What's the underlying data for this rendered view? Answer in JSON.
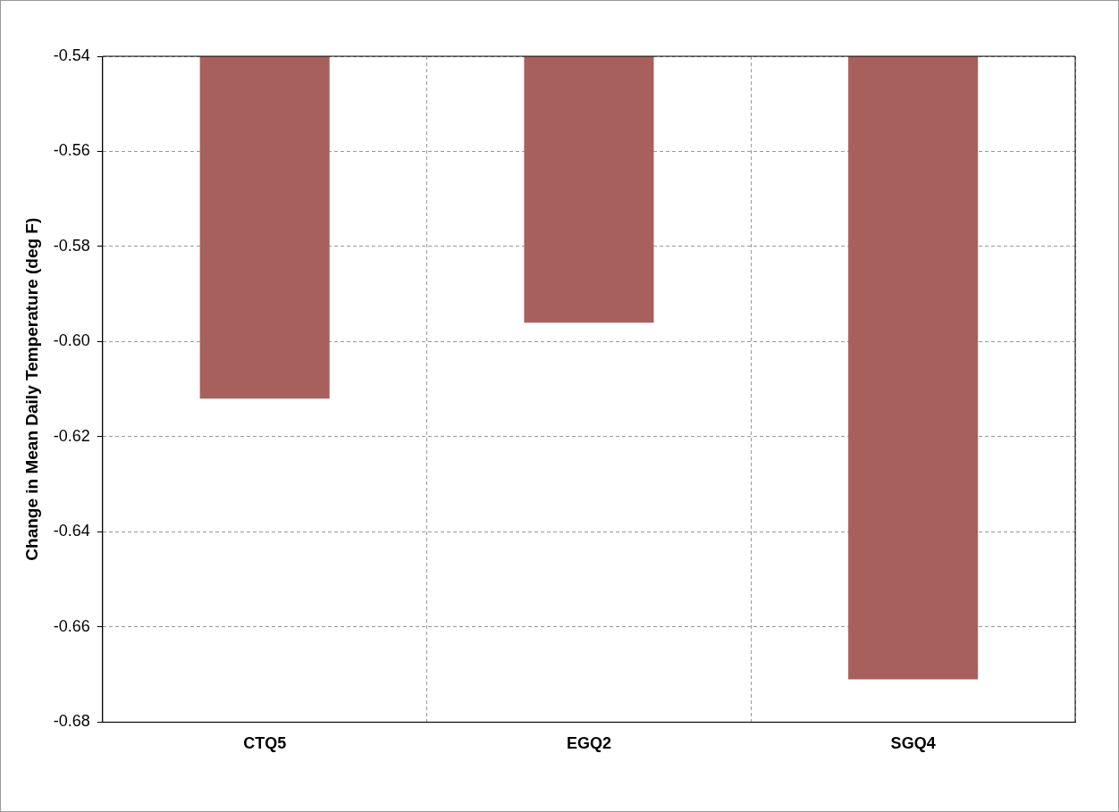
{
  "chart_data": {
    "type": "bar",
    "ylabel": "Change in Mean Daily Temperature (deg F)",
    "categories": [
      "CTQ5",
      "EGQ2",
      "SGQ4"
    ],
    "series": [
      {
        "color": "#a8605c",
        "values": [
          -0.612,
          -0.596,
          -0.671
        ]
      }
    ],
    "ylim": [
      -0.68,
      -0.54
    ],
    "yticks": [
      -0.68,
      -0.66,
      -0.64,
      -0.62,
      {
        "value": -0.6,
        "label": "-0.60"
      },
      -0.58,
      -0.56,
      -0.54
    ],
    "grid": true,
    "legend": false
  }
}
